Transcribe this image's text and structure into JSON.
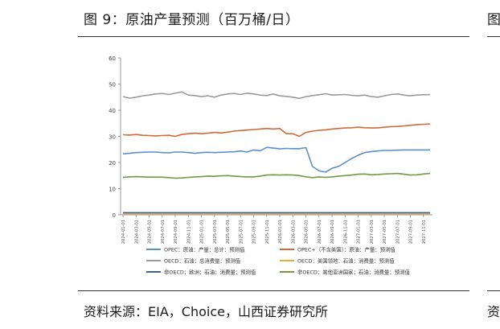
{
  "figure": {
    "title": "图 9：原油产量预测（百万桶/日）",
    "source": "资料来源：EIA，Choice，山西证券研究所",
    "right_title_fragment": "图",
    "right_source_fragment": "资"
  },
  "chart_data": {
    "type": "line",
    "title": "",
    "xlabel": "",
    "ylabel": "",
    "ylim": [
      0,
      60
    ],
    "yticks": [
      0,
      10,
      20,
      30,
      40,
      50,
      60
    ],
    "grid": false,
    "legend_position": "bottom",
    "x": [
      "2024-01-01",
      "2024-02-01",
      "2024-03-01",
      "2024-04-01",
      "2024-05-01",
      "2024-06-01",
      "2024-07-01",
      "2024-08-01",
      "2024-09-01",
      "2024-10-01",
      "2024-11-01",
      "2024-12-01",
      "2025-01-01",
      "2025-02-01",
      "2025-03-01",
      "2025-04-01",
      "2025-05-01",
      "2025-06-01",
      "2025-07-01",
      "2025-08-01",
      "2025-09-01",
      "2025-10-01",
      "2025-11-01",
      "2025-12-01",
      "2026-01-01",
      "2026-02-01",
      "2026-03-01",
      "2026-04-01",
      "2026-05-01",
      "2026-06-01",
      "2026-07-01",
      "2026-08-01",
      "2026-09-01",
      "2026-10-01",
      "2026-11-01",
      "2026-12-01",
      "2027-01-01",
      "2027-02-01",
      "2027-03-01",
      "2027-04-01",
      "2027-05-01",
      "2027-06-01",
      "2027-07-01",
      "2027-08-01",
      "2027-09-01",
      "2027-10-01",
      "2027-11-01",
      "2027-12-01"
    ],
    "xtick_labels": [
      "2024-01-01",
      "2024-03-01",
      "2024-05-01",
      "2024-07-01",
      "2024-09-01",
      "2024-11-01",
      "2025-01-01",
      "2025-03-01",
      "2025-05-01",
      "2025-07-01",
      "2025-09-01",
      "2025-11-01",
      "2026-01-01",
      "2026-03-01",
      "2026-05-01",
      "2026-07-01",
      "2026-09-01",
      "2026-11-01",
      "2027-01-01",
      "2027-03-01",
      "2027-05-01",
      "2027-07-01",
      "2027-09-01",
      "2027-11-01"
    ],
    "series": [
      {
        "name": "OPEC：原油：产量：总计：预测值",
        "color": "#5b8fc9",
        "values": [
          23.3,
          23.5,
          23.8,
          23.9,
          24.0,
          24.0,
          23.8,
          23.7,
          24.0,
          24.0,
          23.8,
          23.5,
          23.8,
          23.9,
          23.8,
          23.9,
          24.0,
          24.1,
          24.4,
          24.0,
          24.8,
          24.5,
          25.8,
          25.5,
          25.2,
          25.4,
          25.3,
          25.3,
          25.7,
          18.5,
          16.8,
          16.3,
          17.8,
          18.5,
          20.0,
          21.5,
          22.8,
          23.8,
          24.2,
          24.4,
          24.6,
          24.6,
          24.7,
          24.8,
          24.8,
          24.8,
          24.8,
          24.8
        ]
      },
      {
        "name": "OPEC+（不含美国）：原油：产量：预测值",
        "color": "#d06a3a",
        "values": [
          30.6,
          30.5,
          30.7,
          30.4,
          30.3,
          30.2,
          30.3,
          30.4,
          30.0,
          30.7,
          31.0,
          31.2,
          31.0,
          31.2,
          31.5,
          31.3,
          31.6,
          32.0,
          32.2,
          32.4,
          32.6,
          32.8,
          33.0,
          32.8,
          33.0,
          31.0,
          31.0,
          30.0,
          31.5,
          32.0,
          32.3,
          32.5,
          32.8,
          33.0,
          33.2,
          33.3,
          33.5,
          33.3,
          33.2,
          33.2,
          33.5,
          33.7,
          33.8,
          34.0,
          34.2,
          34.5,
          34.6,
          34.7
        ]
      },
      {
        "name": "OECD：石油：总消费量：预测值",
        "color": "#9a9a9a",
        "values": [
          45.2,
          44.6,
          45.0,
          45.5,
          45.8,
          46.2,
          46.4,
          46.0,
          46.5,
          47.0,
          45.8,
          45.6,
          45.2,
          45.5,
          45.0,
          45.8,
          46.2,
          46.4,
          46.0,
          46.5,
          46.2,
          45.8,
          45.6,
          46.2,
          45.5,
          45.3,
          45.0,
          44.5,
          45.2,
          45.6,
          45.9,
          46.3,
          45.8,
          45.9,
          46.0,
          45.7,
          45.5,
          45.8,
          45.2,
          45.0,
          45.5,
          46.0,
          46.2,
          45.8,
          45.5,
          45.8,
          45.9,
          46.0
        ]
      },
      {
        "name": "OECD：美国领地：石油：消费量：预测值",
        "color": "#e8b030",
        "values": [
          0.3,
          0.3,
          0.3,
          0.3,
          0.3,
          0.3,
          0.3,
          0.3,
          0.3,
          0.3,
          0.3,
          0.3,
          0.3,
          0.3,
          0.3,
          0.3,
          0.3,
          0.3,
          0.3,
          0.3,
          0.3,
          0.3,
          0.3,
          0.3,
          0.3,
          0.3,
          0.3,
          0.3,
          0.3,
          0.3,
          0.3,
          0.3,
          0.3,
          0.3,
          0.3,
          0.3,
          0.3,
          0.3,
          0.3,
          0.3,
          0.3,
          0.3,
          0.3,
          0.3,
          0.3,
          0.3,
          0.3,
          0.3
        ]
      },
      {
        "name": "非OECD：欧洲：石油：消费量：预测值",
        "color": "#3a5fa8",
        "values": [
          0.8,
          0.8,
          0.8,
          0.8,
          0.8,
          0.8,
          0.8,
          0.8,
          0.8,
          0.8,
          0.8,
          0.8,
          0.8,
          0.8,
          0.8,
          0.8,
          0.8,
          0.8,
          0.8,
          0.8,
          0.8,
          0.8,
          0.8,
          0.8,
          0.8,
          0.8,
          0.8,
          0.8,
          0.8,
          0.8,
          0.8,
          0.8,
          0.8,
          0.8,
          0.8,
          0.8,
          0.8,
          0.8,
          0.8,
          0.8,
          0.8,
          0.8,
          0.8,
          0.8,
          0.8,
          0.8,
          0.8,
          0.8
        ]
      },
      {
        "name": "非OECD：其他亚洲国家：石油：消费量：预测值",
        "color": "#6f9a46",
        "values": [
          14.3,
          14.5,
          14.6,
          14.5,
          14.4,
          14.4,
          14.4,
          14.2,
          14.0,
          14.1,
          14.3,
          14.5,
          14.6,
          14.8,
          14.7,
          14.9,
          15.0,
          14.8,
          14.6,
          14.5,
          14.5,
          14.8,
          15.2,
          15.3,
          15.2,
          15.3,
          15.2,
          15.0,
          14.5,
          14.2,
          14.5,
          14.3,
          14.5,
          14.8,
          15.0,
          15.2,
          15.5,
          15.6,
          15.3,
          15.4,
          15.6,
          15.7,
          15.8,
          15.5,
          15.2,
          15.3,
          15.6,
          15.8
        ]
      }
    ]
  }
}
